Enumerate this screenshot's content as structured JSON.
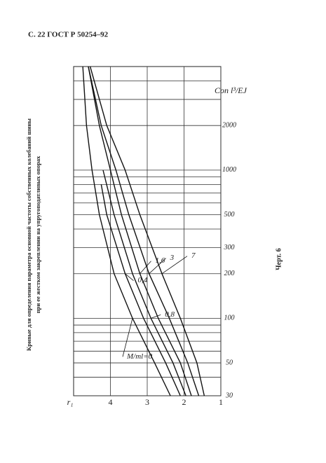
{
  "header": "С. 22 ГОСТ Р 50254–92",
  "caption": [
    "Кривые для определения параметра основной частоты собственных колебаний шины",
    "при ее жестком закреплении на упругоподатливых опорах"
  ],
  "figure_label": "Черт. 6",
  "chart_data": {
    "type": "line",
    "x_label": "Cоп l³/EJ",
    "y_label": "r₁",
    "log_x": true,
    "xlim": [
      30,
      5000
    ],
    "xticks": [
      30,
      50,
      100,
      200,
      300,
      500,
      1000,
      2000
    ],
    "xminor": [
      40,
      60,
      70,
      80,
      90,
      400,
      600,
      700,
      800,
      900,
      3000,
      4000
    ],
    "ylim": [
      1,
      5
    ],
    "yticks": [
      1,
      2,
      3,
      4
    ],
    "grid": true,
    "series": [
      {
        "name": "M/ml=0",
        "color": "#111",
        "x": [
          30,
          50,
          100,
          200,
          500,
          1000,
          2000,
          5000
        ],
        "values": [
          2.37,
          2.8,
          3.4,
          3.9,
          4.3,
          4.5,
          4.65,
          4.75
        ]
      },
      {
        "name": "0,4",
        "color": "#111",
        "x": [
          30,
          50,
          100,
          200,
          500,
          800
        ],
        "values": [
          2.1,
          2.5,
          3.1,
          3.6,
          4.1,
          4.25
        ]
      },
      {
        "name": "0,8",
        "color": "#111",
        "x": [
          30,
          50,
          100,
          200,
          500,
          1000
        ],
        "values": [
          1.95,
          2.3,
          2.9,
          3.4,
          3.9,
          4.2
        ]
      },
      {
        "name": "1,6",
        "color": "#111",
        "x": [
          30,
          50,
          100,
          200,
          500,
          1000,
          2000,
          5000
        ],
        "values": [
          1.8,
          2.1,
          2.7,
          3.2,
          3.7,
          4.0,
          4.3,
          4.6
        ]
      },
      {
        "name": "3",
        "color": "#111",
        "x": [
          30,
          50,
          100,
          200,
          500,
          1000,
          2000,
          5000
        ],
        "values": [
          1.6,
          1.9,
          2.4,
          2.95,
          3.5,
          3.85,
          4.25,
          4.6
        ]
      },
      {
        "name": "7",
        "color": "#111",
        "x": [
          30,
          50,
          100,
          200,
          500,
          1000,
          2000,
          5000
        ],
        "values": [
          1.45,
          1.65,
          2.1,
          2.6,
          3.2,
          3.6,
          4.1,
          4.55
        ]
      }
    ]
  }
}
